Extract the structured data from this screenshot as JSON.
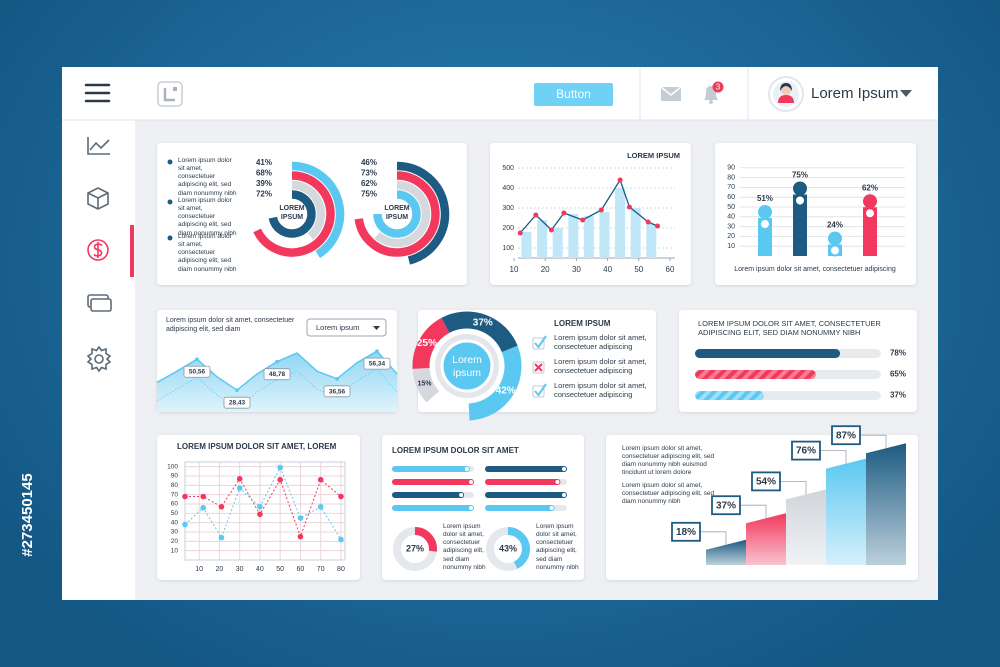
{
  "stock_id": "#273450145",
  "header": {
    "button": "Button",
    "badge": "3",
    "user": "Lorem Ipsum"
  },
  "rings": {
    "items": [
      "Lorem ipsum dolor sit amet, consectetuer adipiscing elit, sed diam nonummy nibh",
      "Lorem ipsum dolor sit amet, consectetuer adipiscing elit, sed diam nonummy nibh",
      "Lorem ipsum dolor sit amet, consectetuer adipiscing elit, sed diam nonummy nibh"
    ],
    "charts": [
      {
        "center": "LOREM IPSUM",
        "values": [
          41,
          68,
          39,
          72
        ],
        "value_labels": [
          "41%",
          "68%",
          "39%",
          "72%"
        ],
        "colors": [
          "#5bc8f1",
          "#f2395d",
          "#d5d9de",
          "#1d5b82"
        ]
      },
      {
        "center": "LOREM IPSUM",
        "values": [
          46,
          73,
          62,
          75
        ],
        "value_labels": [
          "46%",
          "73%",
          "62%",
          "75%"
        ],
        "colors": [
          "#1d5b82",
          "#f2395d",
          "#d5d9de",
          "#5bc8f1"
        ]
      }
    ]
  },
  "combo": {
    "type": "line",
    "title": "LOREM IPSUM",
    "xlim": [
      10,
      60
    ],
    "xticks": [
      10,
      20,
      30,
      40,
      50,
      60
    ],
    "ylim": [
      50,
      500
    ],
    "yticks": [
      100,
      200,
      300,
      400,
      500
    ],
    "bars": {
      "x": [
        14,
        19,
        24,
        29,
        34,
        39,
        44,
        49,
        54
      ],
      "values": [
        180,
        240,
        200,
        270,
        260,
        280,
        400,
        300,
        220
      ],
      "color": "#bfe7f8"
    },
    "line": {
      "x": [
        12,
        17,
        22,
        26,
        32,
        38,
        44,
        47,
        53,
        56
      ],
      "values": [
        175,
        265,
        190,
        275,
        240,
        290,
        440,
        305,
        230,
        210
      ],
      "color": "#1d5b82",
      "point_color": "#f2395d"
    }
  },
  "lollipop": {
    "type": "bar",
    "values": [
      51,
      75,
      24,
      62
    ],
    "value_labels": [
      "51%",
      "75%",
      "24%",
      "62%"
    ],
    "colors": [
      "#5bc8f1",
      "#1d5b82",
      "#5bc8f1",
      "#f2395d"
    ],
    "ylim": [
      0,
      100
    ],
    "yticks": [
      10,
      20,
      30,
      40,
      50,
      60,
      70,
      80,
      90
    ],
    "caption": "Lorem ipsum dolor sit amet, consectetuer adipiscing"
  },
  "area": {
    "type": "area",
    "text": "Lorem ipsum dolor sit amet, consectetuer adipiscing elit, sed diam",
    "dropdown": "Lorem ipsum",
    "values": [
      34,
      42,
      50.56,
      38,
      28.43,
      40,
      48.78,
      55,
      42,
      36.56,
      48,
      56.34,
      40
    ],
    "value_labels": [
      null,
      null,
      "50,56",
      null,
      "28,43",
      null,
      "48,78",
      null,
      null,
      "36,56",
      null,
      "56,34",
      null
    ],
    "color": "#5bc8f1"
  },
  "gauge": {
    "type": "donut",
    "values": [
      15,
      25,
      37,
      42
    ],
    "value_labels": [
      "15%",
      "25%",
      "37%",
      "42%"
    ],
    "colors": [
      "#d5d9de",
      "#f2395d",
      "#1d5b82",
      "#5bc8f1"
    ],
    "center": "Lorem ipsum",
    "title": "LOREM IPSUM",
    "items": [
      {
        "status": "check",
        "text": "Lorem ipsum dolor sit amet, consectetuer adipiscing"
      },
      {
        "status": "cross",
        "text": "Lorem ipsum dolor sit amet, consectetuer adipiscing"
      },
      {
        "status": "check",
        "text": "Lorem ipsum dolor sit amet, consectetuer adipiscing"
      }
    ]
  },
  "progress": {
    "type": "progress",
    "title": "LOREM IPSUM DOLOR SIT AMET, CONSECTETUER ADIPISCING ELIT, SED DIAM NONUMMY NIBH",
    "values": [
      78,
      65,
      37
    ],
    "value_labels": [
      "78%",
      "65%",
      "37%"
    ],
    "colors": [
      "#1d5b82",
      "#f2395d",
      "#5bc8f1"
    ],
    "striped": [
      false,
      true,
      true
    ]
  },
  "linechart": {
    "type": "line",
    "title": "LOREM IPSUM DOLOR SIT AMET, LOREM",
    "xlim": [
      3,
      82
    ],
    "xticks": [
      10,
      20,
      30,
      40,
      50,
      60,
      70,
      80
    ],
    "ylim": [
      0,
      105
    ],
    "yticks": [
      10,
      20,
      30,
      40,
      50,
      60,
      70,
      80,
      90,
      100
    ],
    "x": [
      3,
      12,
      21,
      30,
      40,
      50,
      60,
      70,
      80
    ],
    "series": [
      {
        "color": "#f2395d",
        "values": [
          68,
          68,
          57,
          87,
          49,
          86,
          25,
          86,
          68
        ]
      },
      {
        "color": "#5bc8f1",
        "values": [
          38,
          56,
          24,
          77,
          57,
          99,
          45,
          57,
          22
        ]
      }
    ]
  },
  "bars": {
    "type": "progress",
    "title": "LOREM IPSUM DOLOR SIT AMET",
    "columns": [
      {
        "values": [
          95,
          100,
          88,
          100
        ],
        "colors": [
          "#5bc8f1",
          "#f2395d",
          "#1d5b82",
          "#5bc8f1"
        ]
      },
      {
        "values": [
          100,
          92,
          100,
          85
        ],
        "colors": [
          "#1d5b82",
          "#f2395d",
          "#1d5b82",
          "#5bc8f1"
        ]
      }
    ],
    "donuts": [
      {
        "value": 27,
        "value_label": "27%",
        "color": "#f2395d",
        "text": "Lorem ipsum dolor sit amet, consectetuer adipiscing elit, sed diam nonummy nibh"
      },
      {
        "value": 43,
        "value_label": "43%",
        "color": "#5bc8f1",
        "text": "Lorem ipsum dolor sit amet, consectetuer adipiscing elit, sed diam nonummy nibh"
      }
    ]
  },
  "growth": {
    "type": "bar",
    "texts": [
      "Lorem ipsum dolor sit amet, consectetuer adipiscing elit, sed diam nonummy nibh euismod tincidunt ut lorem dolore",
      "Lorem ipsum dolor sit amet, consectetuer adipiscing elit, sed diam nonummy nibh"
    ],
    "values": [
      18,
      37,
      54,
      76,
      87
    ],
    "value_labels": [
      "18%",
      "37%",
      "54%",
      "76%",
      "87%"
    ],
    "colors": [
      "url(#gNavy)",
      "url(#gRed)",
      "url(#gGray)",
      "url(#gBlue)",
      "url(#gNavy)"
    ]
  }
}
